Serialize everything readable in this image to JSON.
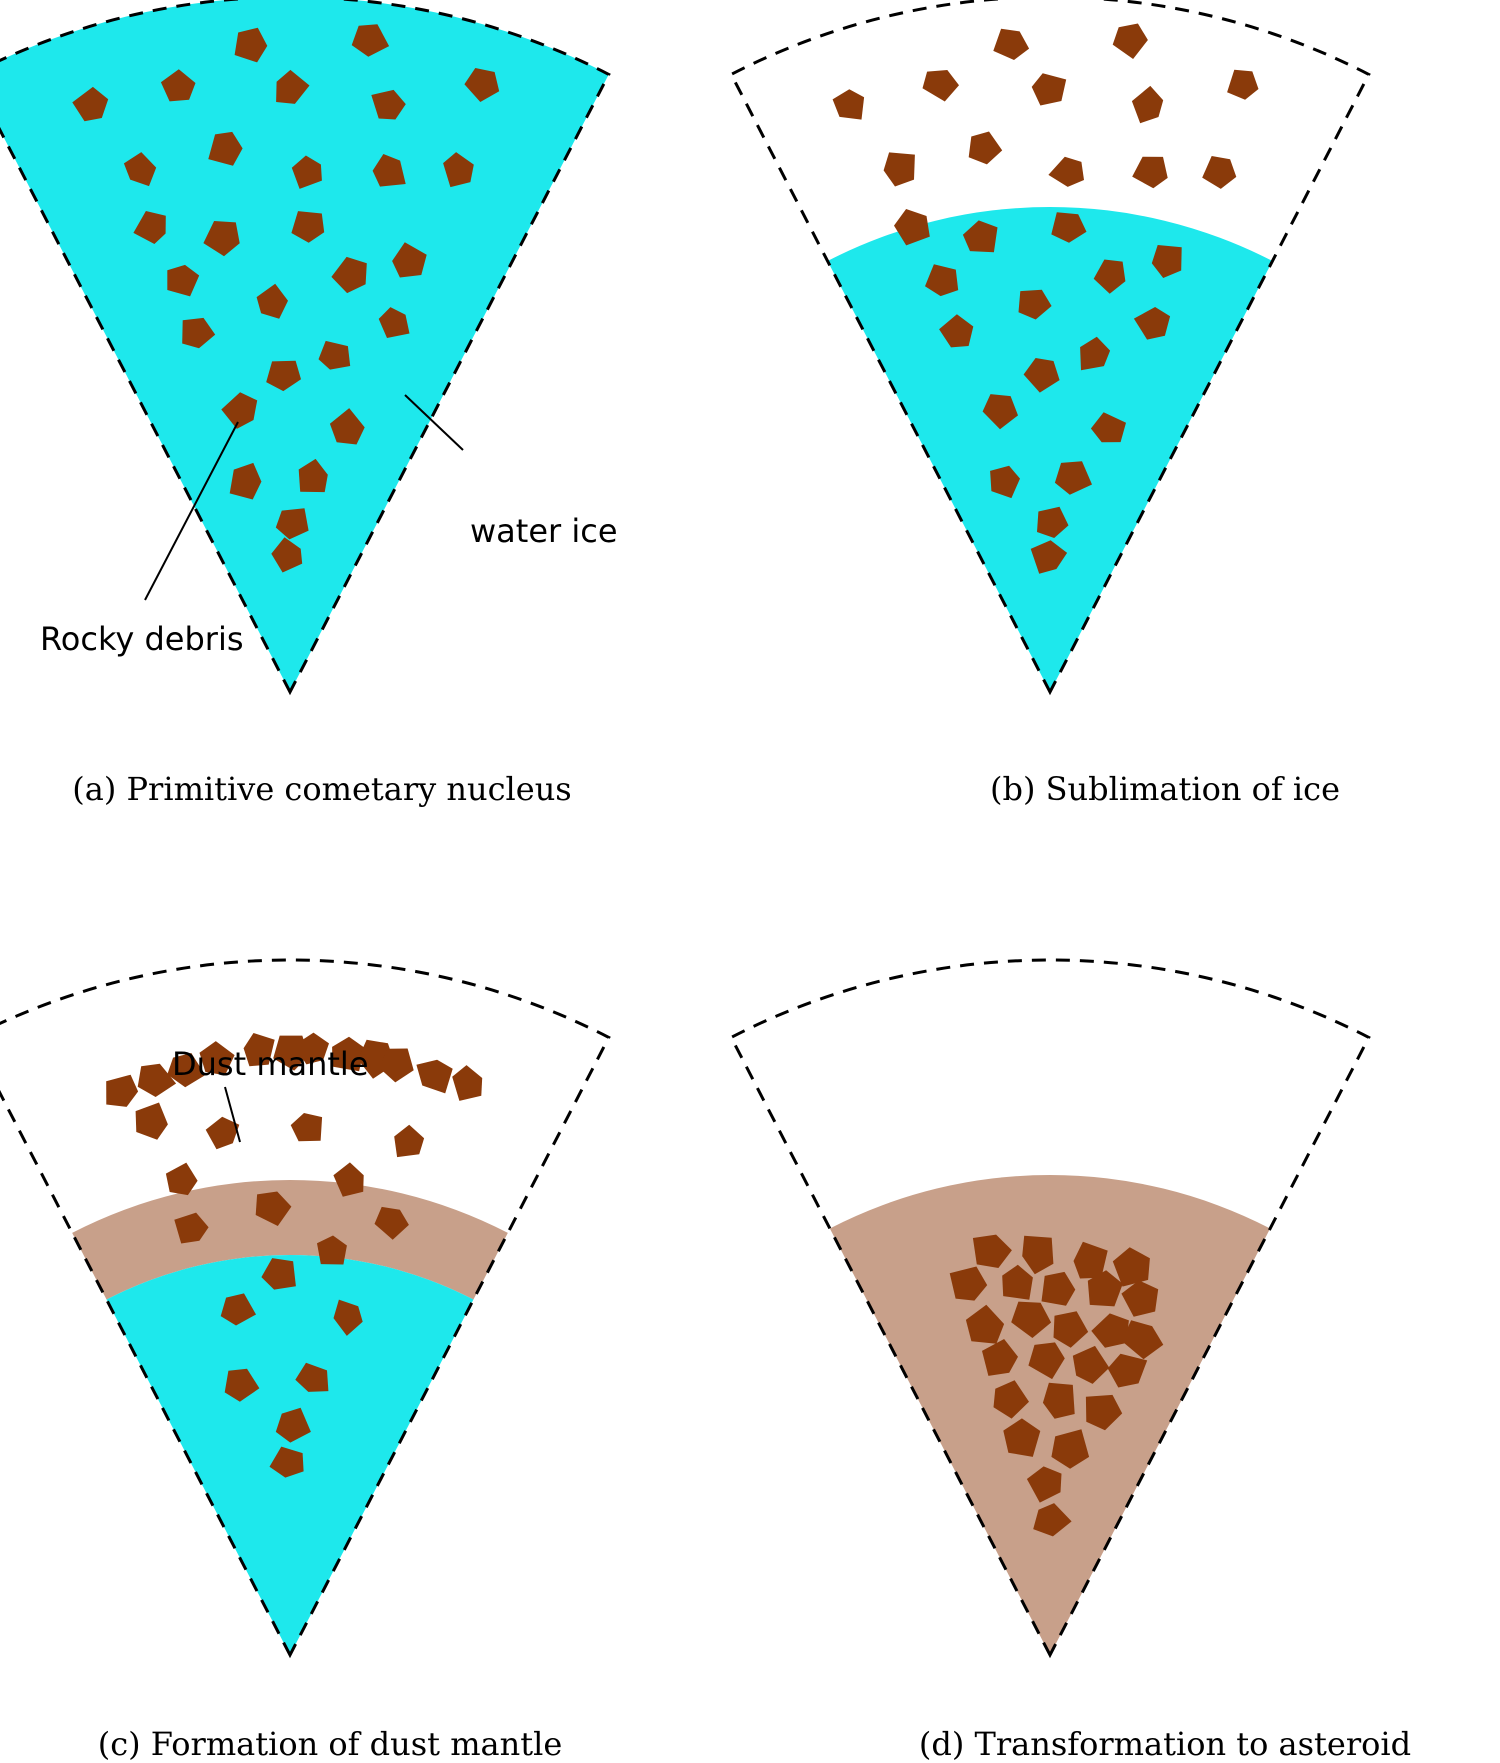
{
  "colors": {
    "ice": "#1ee8ec",
    "rock": "#8a3a0a",
    "mantle": "#c8a08a",
    "outline": "#000000"
  },
  "panels": [
    {
      "id": "a",
      "caption": "(a) Primitive cometary nucleus",
      "stage": "primitive"
    },
    {
      "id": "b",
      "caption": "(b) Sublimation of ice",
      "stage": "sublimation"
    },
    {
      "id": "c",
      "caption": "(c) Formation of dust mantle",
      "stage": "mantle"
    },
    {
      "id": "d",
      "caption": "(d) Transformation to asteroid",
      "stage": "asteroid"
    }
  ],
  "labels": {
    "water_ice": "water ice",
    "rocky_debris": "Rocky debris",
    "dust_mantle": "Dust mantle"
  }
}
